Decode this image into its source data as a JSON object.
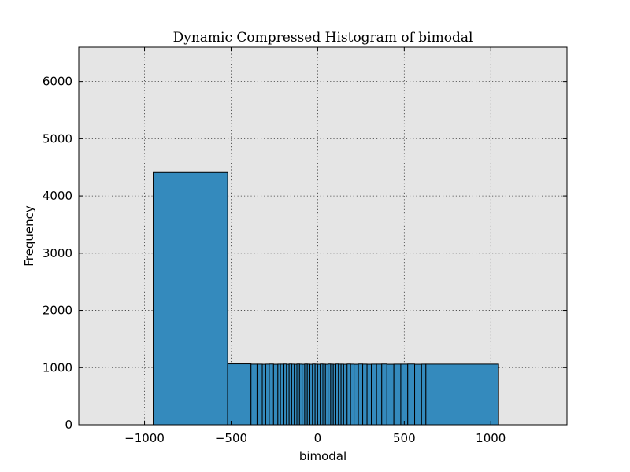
{
  "chart_data": {
    "type": "bar",
    "title": "Dynamic Compressed Histogram of bimodal",
    "xlabel": "bimodal",
    "ylabel": "Frequency",
    "xlim": [
      -1380,
      1440
    ],
    "ylim": [
      0,
      6600
    ],
    "xticks": [
      -1000,
      -500,
      0,
      500,
      1000
    ],
    "xtick_labels": [
      "−1000",
      "−500",
      "0",
      "500",
      "1000"
    ],
    "yticks": [
      0,
      1000,
      2000,
      3000,
      4000,
      5000,
      6000
    ],
    "ytick_labels": [
      "0",
      "1000",
      "2000",
      "3000",
      "4000",
      "5000",
      "6000"
    ],
    "grid": true,
    "bar_color": "#348ABD",
    "edge_color": "#000000",
    "bins": [
      {
        "x0": -950,
        "x1": -520,
        "count": 4410
      },
      {
        "x0": -520,
        "x1": -385,
        "count": 1065
      },
      {
        "x0": -385,
        "x1": -350,
        "count": 1060
      },
      {
        "x0": -350,
        "x1": -320,
        "count": 1060
      },
      {
        "x0": -320,
        "x1": -300,
        "count": 1058
      },
      {
        "x0": -300,
        "x1": -280,
        "count": 1060
      },
      {
        "x0": -280,
        "x1": -255,
        "count": 1062
      },
      {
        "x0": -255,
        "x1": -230,
        "count": 1058
      },
      {
        "x0": -230,
        "x1": -215,
        "count": 1060
      },
      {
        "x0": -215,
        "x1": -195,
        "count": 1060
      },
      {
        "x0": -195,
        "x1": -180,
        "count": 1062
      },
      {
        "x0": -180,
        "x1": -165,
        "count": 1058
      },
      {
        "x0": -165,
        "x1": -150,
        "count": 1062
      },
      {
        "x0": -150,
        "x1": -135,
        "count": 1060
      },
      {
        "x0": -135,
        "x1": -120,
        "count": 1058
      },
      {
        "x0": -120,
        "x1": -105,
        "count": 1062
      },
      {
        "x0": -105,
        "x1": -90,
        "count": 1060
      },
      {
        "x0": -90,
        "x1": -75,
        "count": 1058
      },
      {
        "x0": -75,
        "x1": -60,
        "count": 1062
      },
      {
        "x0": -60,
        "x1": -45,
        "count": 1060
      },
      {
        "x0": -45,
        "x1": -30,
        "count": 1058
      },
      {
        "x0": -30,
        "x1": -15,
        "count": 1062
      },
      {
        "x0": -15,
        "x1": 0,
        "count": 1060
      },
      {
        "x0": 0,
        "x1": 15,
        "count": 1058
      },
      {
        "x0": 15,
        "x1": 30,
        "count": 1062
      },
      {
        "x0": 30,
        "x1": 45,
        "count": 1060
      },
      {
        "x0": 45,
        "x1": 60,
        "count": 1058
      },
      {
        "x0": 60,
        "x1": 75,
        "count": 1062
      },
      {
        "x0": 75,
        "x1": 90,
        "count": 1060
      },
      {
        "x0": 90,
        "x1": 105,
        "count": 1058
      },
      {
        "x0": 105,
        "x1": 120,
        "count": 1062
      },
      {
        "x0": 120,
        "x1": 135,
        "count": 1060
      },
      {
        "x0": 135,
        "x1": 150,
        "count": 1060
      },
      {
        "x0": 150,
        "x1": 170,
        "count": 1058
      },
      {
        "x0": 170,
        "x1": 190,
        "count": 1062
      },
      {
        "x0": 190,
        "x1": 210,
        "count": 1060
      },
      {
        "x0": 210,
        "x1": 235,
        "count": 1058
      },
      {
        "x0": 235,
        "x1": 260,
        "count": 1062
      },
      {
        "x0": 260,
        "x1": 285,
        "count": 1060
      },
      {
        "x0": 285,
        "x1": 310,
        "count": 1058
      },
      {
        "x0": 310,
        "x1": 340,
        "count": 1060
      },
      {
        "x0": 340,
        "x1": 370,
        "count": 1060
      },
      {
        "x0": 370,
        "x1": 400,
        "count": 1062
      },
      {
        "x0": 400,
        "x1": 440,
        "count": 1058
      },
      {
        "x0": 440,
        "x1": 480,
        "count": 1060
      },
      {
        "x0": 480,
        "x1": 520,
        "count": 1060
      },
      {
        "x0": 520,
        "x1": 560,
        "count": 1062
      },
      {
        "x0": 560,
        "x1": 600,
        "count": 1058
      },
      {
        "x0": 600,
        "x1": 625,
        "count": 1060
      },
      {
        "x0": 625,
        "x1": 1045,
        "count": 1060
      }
    ]
  }
}
